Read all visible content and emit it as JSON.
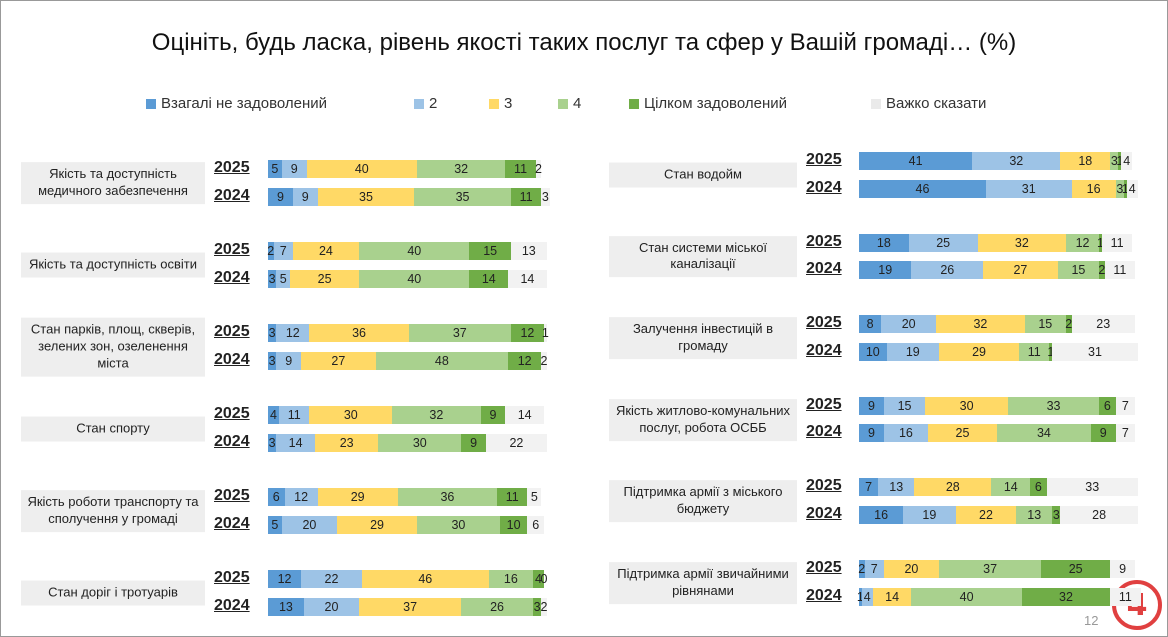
{
  "chart_data": {
    "type": "bar",
    "stacked": true,
    "orientation": "horizontal",
    "title": "Оцініть, будь ласка, рівень якості таких послуг та сфер у Вашій громаді… (%)",
    "years": [
      "2025",
      "2024"
    ],
    "categories": [
      "Якість та доступність медичного забезпечення",
      "Якість та доступність освіти",
      "Стан парків, площ, скверів, зелених зон, озеленення міста",
      "Стан спорту",
      "Якість роботи транспорту та сполучення у громаді",
      "Стан доріг і тротуарів",
      "Стан водойм",
      "Стан системи міської каналізації",
      "Залучення інвестицій в громаду",
      "Якість житлово-комунальних послуг, робота ОСББ",
      "Підтримка армії з міського бюджету",
      "Підтримка армії звичайними рівнянами"
    ],
    "series": [
      {
        "name": "Взагалі не задоволений",
        "color": "#5b9bd5",
        "values": [
          [
            5,
            9
          ],
          [
            2,
            3
          ],
          [
            3,
            3
          ],
          [
            4,
            3
          ],
          [
            6,
            5
          ],
          [
            12,
            13
          ],
          [
            41,
            46
          ],
          [
            18,
            19
          ],
          [
            8,
            10
          ],
          [
            9,
            9
          ],
          [
            7,
            16
          ],
          [
            2,
            1
          ]
        ]
      },
      {
        "name": "2",
        "color": "#9dc3e6",
        "values": [
          [
            9,
            9
          ],
          [
            7,
            5
          ],
          [
            12,
            9
          ],
          [
            11,
            14
          ],
          [
            12,
            20
          ],
          [
            22,
            20
          ],
          [
            32,
            31
          ],
          [
            25,
            26
          ],
          [
            20,
            19
          ],
          [
            15,
            16
          ],
          [
            13,
            19
          ],
          [
            7,
            4
          ]
        ]
      },
      {
        "name": "3",
        "color": "#ffd966",
        "values": [
          [
            40,
            35
          ],
          [
            24,
            25
          ],
          [
            36,
            27
          ],
          [
            30,
            23
          ],
          [
            29,
            29
          ],
          [
            46,
            37
          ],
          [
            18,
            16
          ],
          [
            32,
            27
          ],
          [
            32,
            29
          ],
          [
            30,
            25
          ],
          [
            28,
            22
          ],
          [
            20,
            14
          ]
        ]
      },
      {
        "name": "4",
        "color": "#a9d18e",
        "values": [
          [
            32,
            35
          ],
          [
            40,
            40
          ],
          [
            37,
            48
          ],
          [
            32,
            30
          ],
          [
            36,
            30
          ],
          [
            16,
            26
          ],
          [
            3,
            3
          ],
          [
            12,
            15
          ],
          [
            15,
            11
          ],
          [
            33,
            34
          ],
          [
            14,
            13
          ],
          [
            37,
            40
          ]
        ]
      },
      {
        "name": "Цілком задоволений",
        "color": "#70ad47",
        "values": [
          [
            11,
            11
          ],
          [
            15,
            14
          ],
          [
            12,
            12
          ],
          [
            9,
            9
          ],
          [
            11,
            10
          ],
          [
            4,
            3
          ],
          [
            1,
            1
          ],
          [
            1,
            2
          ],
          [
            2,
            1
          ],
          [
            6,
            9
          ],
          [
            6,
            3
          ],
          [
            25,
            32
          ]
        ]
      },
      {
        "name": "Важко сказати",
        "color": "#f2f2f2",
        "values": [
          [
            2,
            3
          ],
          [
            13,
            14
          ],
          [
            1,
            2
          ],
          [
            14,
            22
          ],
          [
            5,
            6
          ],
          [
            0,
            2
          ],
          [
            4,
            4
          ],
          [
            11,
            11
          ],
          [
            23,
            31
          ],
          [
            7,
            7
          ],
          [
            33,
            28
          ],
          [
            9,
            11
          ]
        ]
      }
    ]
  },
  "page_number": "12"
}
